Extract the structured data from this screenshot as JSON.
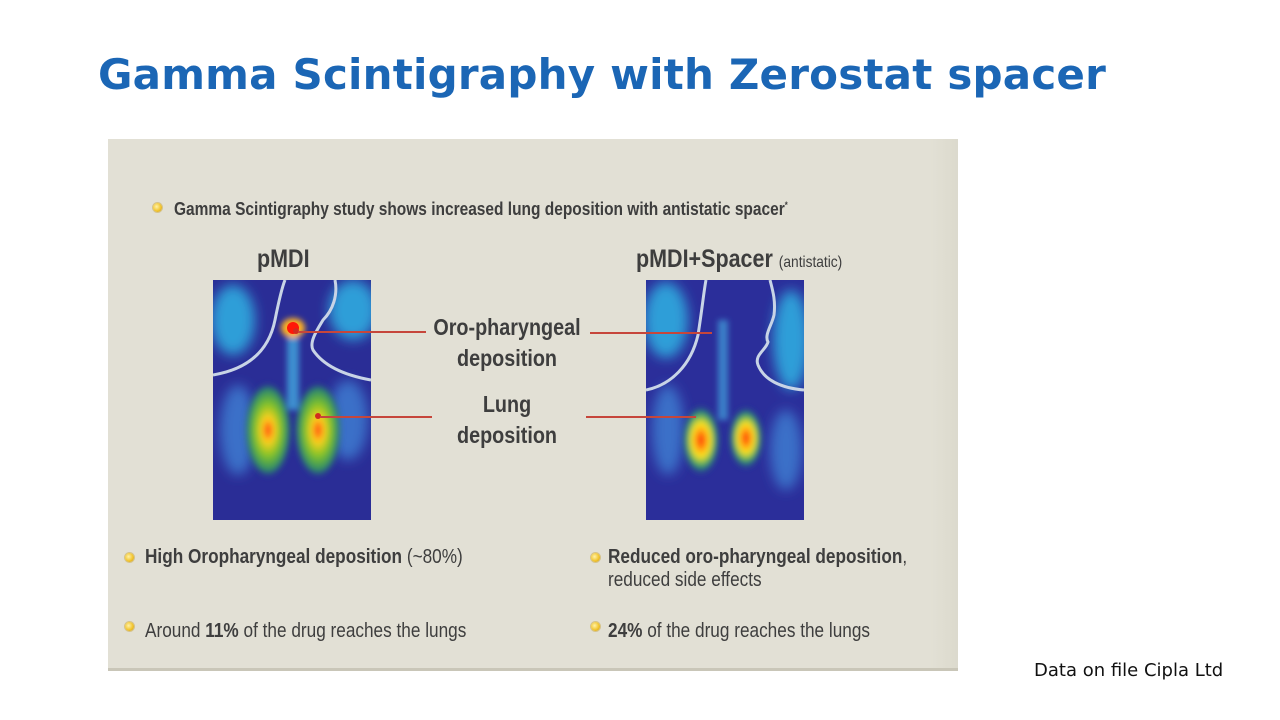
{
  "title": "Gamma Scintigraphy with Zerostat spacer",
  "figure": {
    "intro": "Gamma Scintigraphy study shows increased lung deposition with antistatic spacer",
    "intro_mark": "*",
    "left": {
      "heading": "pMDI",
      "note1_bold": "High Oropharyngeal deposition",
      "note1_rest": " (~80%)",
      "note2_pre": "Around ",
      "note2_bold": "11%",
      "note2_post": " of the drug reaches the lungs"
    },
    "right": {
      "heading": "pMDI+Spacer",
      "heading_sub": "(antistatic)",
      "note1_bold": "Reduced oro-pharyngeal deposition",
      "note1_tail": ",",
      "note1_line2": "reduced side effects",
      "note2_bold": "24%",
      "note2_post": " of the drug reaches the lungs"
    },
    "callouts": {
      "oro_line1": "Oro-pharyngeal",
      "oro_line2": "deposition",
      "lung_line1": "Lung",
      "lung_line2": "deposition"
    },
    "colors": {
      "title": "#1b66b5",
      "panel": "#e2e0d5",
      "leader": "#c6463b",
      "bullet": "#f2c530"
    }
  },
  "footnote": "Data on file Cipla Ltd"
}
